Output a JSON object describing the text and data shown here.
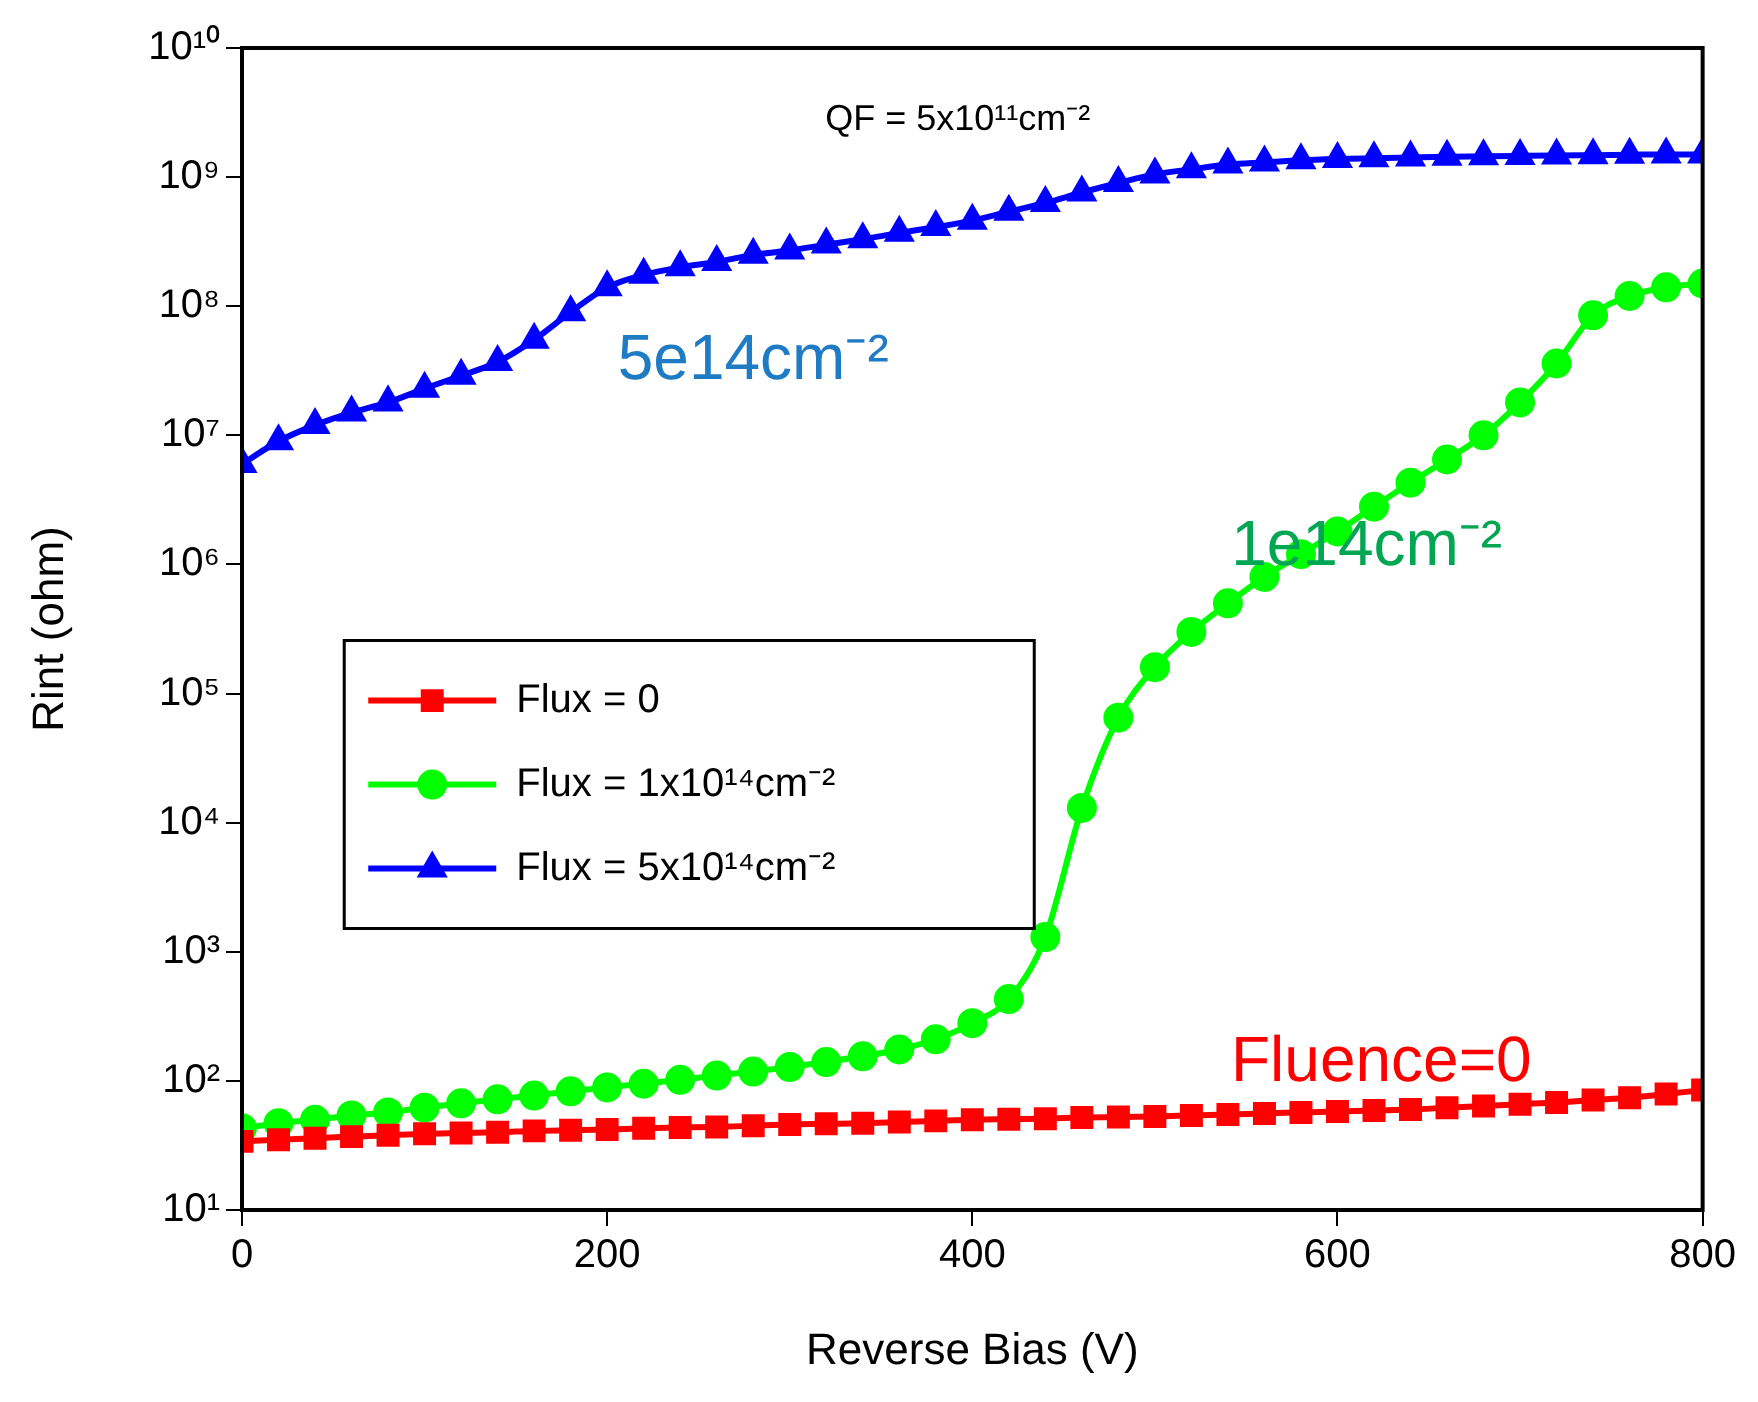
{
  "chart_data": {
    "type": "line",
    "title": "QF = 5x10¹¹cm⁻²",
    "xlabel": "Reverse Bias (V)",
    "ylabel": "Rint (ohm)",
    "x": [
      0,
      20,
      40,
      60,
      80,
      100,
      120,
      140,
      160,
      180,
      200,
      220,
      240,
      260,
      280,
      300,
      320,
      340,
      360,
      380,
      400,
      420,
      440,
      460,
      480,
      500,
      520,
      540,
      560,
      580,
      600,
      620,
      640,
      660,
      680,
      700,
      720,
      740,
      760,
      780,
      800
    ],
    "series": [
      {
        "name": "Flux = 0",
        "color": "#ff0000",
        "marker": "square",
        "values": [
          34,
          35,
          36,
          37,
          38,
          39,
          39.5,
          40,
          41,
          41.5,
          42,
          43,
          43.5,
          44,
          45,
          46,
          46.5,
          47,
          48,
          49,
          50,
          50.5,
          51,
          52,
          52.5,
          53,
          54,
          55,
          56,
          57,
          58,
          59,
          60,
          62,
          64,
          66,
          68,
          71,
          74,
          79,
          85
        ]
      },
      {
        "name": "Flux = 1x10¹⁴cm⁻²",
        "color": "#00ff00",
        "marker": "circle",
        "values": [
          43,
          47,
          50,
          54,
          57,
          62,
          67,
          72,
          77,
          83,
          89,
          95,
          102,
          110,
          118,
          128,
          140,
          155,
          175,
          210,
          280,
          430,
          1300,
          13000,
          65000,
          160000,
          300000,
          500000,
          800000,
          1200000,
          1800000,
          2800000,
          4300000,
          6500000,
          10000000,
          18000000,
          36000000,
          85000000,
          120000000,
          140000000,
          150000000
        ]
      },
      {
        "name": "Flux = 5x10¹⁴cm⁻²",
        "color": "#0000ff",
        "marker": "triangle",
        "values": [
          6000000,
          9000000,
          12000000,
          15000000,
          18000000,
          23000000,
          29000000,
          37000000,
          55000000,
          90000000,
          140000000,
          175000000,
          200000000,
          220000000,
          250000000,
          270000000,
          300000000,
          330000000,
          370000000,
          410000000,
          460000000,
          540000000,
          630000000,
          760000000,
          900000000,
          1050000000,
          1150000000,
          1250000000,
          1300000000,
          1350000000,
          1380000000,
          1400000000,
          1420000000,
          1440000000,
          1450000000,
          1460000000,
          1470000000,
          1480000000,
          1490000000,
          1500000000,
          1500000000
        ]
      }
    ],
    "annotations": [
      "Fluence=0",
      "1e14cm⁻²",
      "5e14cm⁻²"
    ],
    "log": "y",
    "xlim": [
      0,
      800
    ],
    "xticks": [
      0,
      200,
      400,
      600,
      800
    ],
    "ylim": [
      10,
      10000000000
    ],
    "yticks": [
      {
        "value": 10,
        "label": "10¹"
      },
      {
        "value": 100,
        "label": "10²"
      },
      {
        "value": 1000,
        "label": "10³"
      },
      {
        "value": 10000,
        "label": "10⁴"
      },
      {
        "value": 100000,
        "label": "10⁵"
      },
      {
        "value": 1000000,
        "label": "10⁶"
      },
      {
        "value": 10000000,
        "label": "10⁷"
      },
      {
        "value": 100000000,
        "label": "10⁸"
      },
      {
        "value": 1000000000,
        "label": "10⁹"
      },
      {
        "value": 10000000000,
        "label": "10¹⁰"
      }
    ],
    "grid": false,
    "legend": "left"
  }
}
